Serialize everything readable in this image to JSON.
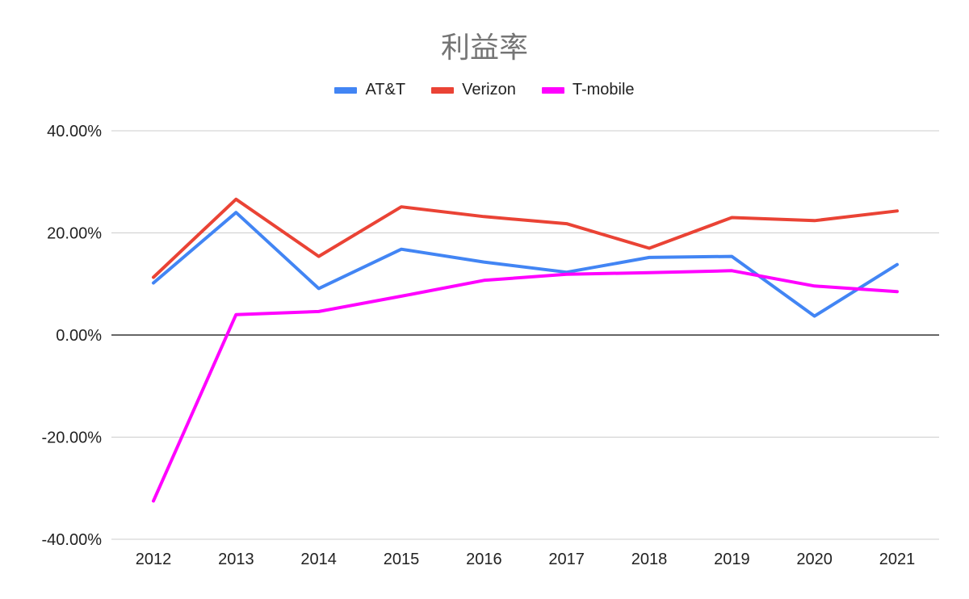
{
  "chart_data": {
    "type": "line",
    "title": "利益率",
    "xlabel": "",
    "ylabel": "",
    "categories": [
      "2012",
      "2013",
      "2014",
      "2015",
      "2016",
      "2017",
      "2018",
      "2019",
      "2020",
      "2021"
    ],
    "ylim": [
      -0.4,
      0.4
    ],
    "yticks": [
      {
        "value": 0.4,
        "label": "40.00%"
      },
      {
        "value": 0.2,
        "label": "20.00%"
      },
      {
        "value": 0.0,
        "label": "0.00%"
      },
      {
        "value": -0.2,
        "label": "-20.00%"
      },
      {
        "value": -0.4,
        "label": "-40.00%"
      }
    ],
    "grid": true,
    "legend_position": "top",
    "series": [
      {
        "name": "AT&T",
        "color": "#4285F4",
        "values": [
          0.102,
          0.24,
          0.091,
          0.168,
          0.143,
          0.123,
          0.152,
          0.154,
          0.037,
          0.138
        ]
      },
      {
        "name": "Verizon",
        "color": "#EA4335",
        "values": [
          0.113,
          0.266,
          0.154,
          0.251,
          0.232,
          0.218,
          0.17,
          0.23,
          0.224,
          0.243
        ]
      },
      {
        "name": "T-mobile",
        "color": "#FF00FF",
        "values": [
          -0.325,
          0.04,
          0.046,
          0.076,
          0.107,
          0.119,
          0.122,
          0.126,
          0.096,
          0.085
        ]
      }
    ]
  }
}
